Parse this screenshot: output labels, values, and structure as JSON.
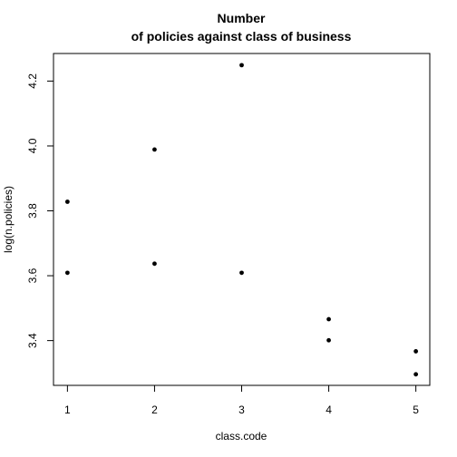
{
  "chart_data": {
    "type": "scatter",
    "title_lines": [
      "Number",
      "of policies against class of business"
    ],
    "xlabel": "class.code",
    "ylabel": "log(n.policies)",
    "xlim": [
      0.84,
      5.16
    ],
    "ylim": [
      3.262,
      4.285
    ],
    "x_ticks": [
      1,
      2,
      3,
      4,
      5
    ],
    "y_ticks": [
      3.4,
      3.6,
      3.8,
      4.0,
      4.2
    ],
    "x_tick_labels": [
      "1",
      "2",
      "3",
      "4",
      "5"
    ],
    "y_tick_labels": [
      "3.4",
      "3.6",
      "3.8",
      "4.0",
      "4.2"
    ],
    "grid": false,
    "marker_color": "#000000",
    "points": [
      {
        "x": 1,
        "y": 3.828
      },
      {
        "x": 1,
        "y": 3.609
      },
      {
        "x": 2,
        "y": 3.989
      },
      {
        "x": 2,
        "y": 3.637
      },
      {
        "x": 3,
        "y": 4.249
      },
      {
        "x": 3,
        "y": 3.609
      },
      {
        "x": 4,
        "y": 3.466
      },
      {
        "x": 4,
        "y": 3.401
      },
      {
        "x": 5,
        "y": 3.367
      },
      {
        "x": 5,
        "y": 3.296
      }
    ]
  }
}
